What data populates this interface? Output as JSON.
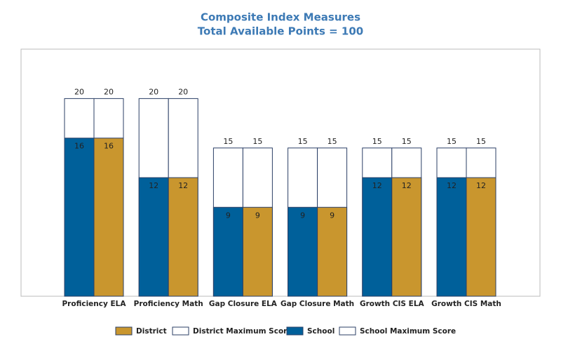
{
  "chart_data": {
    "type": "bar",
    "title": "Composite Index Measures",
    "subtitle": "Total Available Points = 100",
    "categories": [
      "Proficiency ELA",
      "Proficiency Math",
      "Gap Closure ELA",
      "Gap Closure Math",
      "Growth CIS ELA",
      "Growth CIS Math"
    ],
    "series": [
      {
        "name": "District",
        "color": "#c9962e",
        "values": [
          16,
          12,
          9,
          9,
          12,
          12
        ]
      },
      {
        "name": "District Maximum Score",
        "color": "#ffffff",
        "values": [
          20,
          20,
          15,
          15,
          15,
          15
        ]
      },
      {
        "name": "School",
        "color": "#00609a",
        "values": [
          16,
          12,
          9,
          9,
          12,
          12
        ]
      },
      {
        "name": "School Maximum Score",
        "color": "#ffffff",
        "values": [
          20,
          20,
          15,
          15,
          15,
          15
        ]
      }
    ],
    "ylim": [
      0,
      25
    ],
    "legend": "bottom"
  }
}
